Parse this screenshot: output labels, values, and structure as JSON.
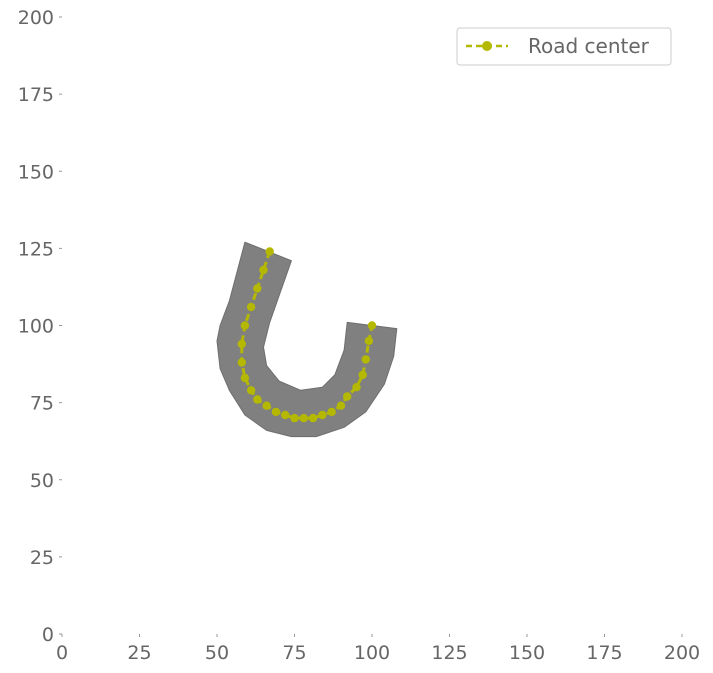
{
  "chart_data": {
    "type": "line",
    "title": "",
    "xlabel": "",
    "ylabel": "",
    "xlim": [
      0,
      200
    ],
    "ylim": [
      0,
      200
    ],
    "xticks": [
      0,
      25,
      50,
      75,
      100,
      125,
      150,
      175,
      200
    ],
    "yticks": [
      0,
      25,
      50,
      75,
      100,
      125,
      150,
      175,
      200
    ],
    "grid": false,
    "legend": {
      "placement": "top-right",
      "entries": [
        "Road center"
      ]
    },
    "road": {
      "color": "#808080",
      "polygon": [
        [
          59,
          127
        ],
        [
          74,
          121
        ],
        [
          67,
          101
        ],
        [
          65,
          93
        ],
        [
          66,
          87
        ],
        [
          70,
          82
        ],
        [
          77,
          79
        ],
        [
          84,
          80
        ],
        [
          88,
          84
        ],
        [
          91,
          92
        ],
        [
          92,
          101
        ],
        [
          108,
          99
        ],
        [
          107,
          90
        ],
        [
          104,
          81
        ],
        [
          98,
          72
        ],
        [
          91,
          67
        ],
        [
          82,
          64
        ],
        [
          74,
          64
        ],
        [
          66,
          66
        ],
        [
          59,
          71
        ],
        [
          54,
          79
        ],
        [
          51,
          86
        ],
        [
          50,
          95
        ],
        [
          51,
          100
        ],
        [
          54,
          108
        ]
      ]
    },
    "series": [
      {
        "name": "Road center",
        "color": "#b5b800",
        "marker": "circle",
        "linestyle": "dashed",
        "x": [
          67,
          65,
          63,
          61,
          59,
          58,
          58,
          59,
          61,
          63,
          66,
          69,
          72,
          75,
          78,
          81,
          84,
          87,
          90,
          92,
          95,
          97,
          98,
          99,
          100
        ],
        "y": [
          124,
          118,
          112,
          106,
          100,
          94,
          88,
          83,
          79,
          76,
          74,
          72,
          71,
          70,
          70,
          70,
          71,
          72,
          74,
          77,
          80,
          84,
          89,
          95,
          100
        ]
      }
    ]
  }
}
